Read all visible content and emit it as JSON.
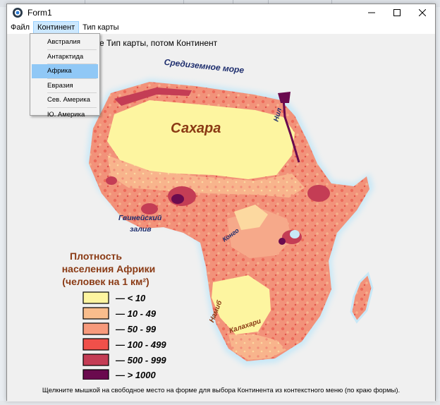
{
  "window": {
    "title": "Form1"
  },
  "caption": {
    "minimize_icon": "minimize-icon",
    "maximize_icon": "maximize-icon",
    "close_icon": "close-icon"
  },
  "menu": {
    "items": [
      {
        "label": "Файл"
      },
      {
        "label": "Континент"
      },
      {
        "label": "Тип карты"
      }
    ],
    "open_index": 1,
    "dropdown": [
      {
        "label": "Австралия"
      },
      {
        "label": "Антарктида"
      },
      {
        "label": "Африка"
      },
      {
        "label": "Евразия"
      },
      {
        "label": "Сев. Америка"
      },
      {
        "label": "Ю. Америка"
      }
    ],
    "selected_dropdown_index": 2
  },
  "hints": {
    "top": "е Тип карты, потом Континент",
    "bottom": "Щелкните мышкой на свободное место на форме для выбора Континента из контекстного меню (по краю формы)."
  },
  "map": {
    "labels": {
      "mediterranean": "Средиземное море",
      "nile": "Нил",
      "sahara": "Сахара",
      "guinea_1": "Гвинейский",
      "guinea_2": "залив",
      "congo": "Конго",
      "namib": "Намиб",
      "kalahari": "Калахари"
    },
    "legend": {
      "title_1": "Плотность",
      "title_2": "населения Африки",
      "title_3": "(человек на 1 км²)",
      "items": [
        {
          "label": "— < 10",
          "color": "#fdf5a0"
        },
        {
          "label": "— 10 - 49",
          "color": "#f9bd8c"
        },
        {
          "label": "— 50 - 99",
          "color": "#f79a7c"
        },
        {
          "label": "— 100 - 499",
          "color": "#f0504a"
        },
        {
          "label": "— 500 - 999",
          "color": "#c43d55"
        },
        {
          "label": "— > 1000",
          "color": "#6a0a4e"
        }
      ]
    },
    "colors": {
      "ocean_glow": "#c8e8f7",
      "title_text": "#8a3a14",
      "sea_label": "#1e2e6e"
    }
  }
}
